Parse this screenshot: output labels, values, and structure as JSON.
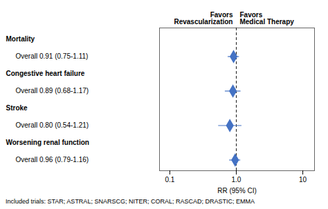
{
  "chart_data": {
    "type": "forest",
    "categories": [
      "Mortality",
      "Overall 0.91 (0.75-1.11)",
      "Congestive heart failure",
      "Overall 0.89 (0.68-1.17)",
      "Stroke",
      "Overall 0.80 (0.54-1.21)",
      "Worsening renal function",
      "Overall 0.96 (0.79-1.16)"
    ],
    "values": [
      null,
      0.91,
      null,
      0.89,
      null,
      0.8,
      null,
      0.96
    ],
    "ci_low": [
      null,
      0.75,
      null,
      0.68,
      null,
      0.54,
      null,
      0.79
    ],
    "ci_high": [
      null,
      1.11,
      null,
      1.17,
      null,
      1.21,
      null,
      1.16
    ],
    "xlim": [
      0.07,
      15.0
    ],
    "xticks": [
      0.1,
      {
        "value": 1.0,
        "label": "1.0"
      },
      10
    ],
    "log": "x",
    "xlabel": "RR (95% CI)",
    "color": "#4472C4",
    "reference_line": 1.0,
    "annotations": [
      {
        "x": 1.0,
        "text": "Favors\nRevascularization"
      },
      {
        "x": 1.0,
        "text": "Favors\nMedical Therapy"
      }
    ],
    "caption": "Included trials: STAR; ASTRAL; SNARSCG;  NITER; CORAL; RASCAD; DRASTIC; EMMA"
  }
}
